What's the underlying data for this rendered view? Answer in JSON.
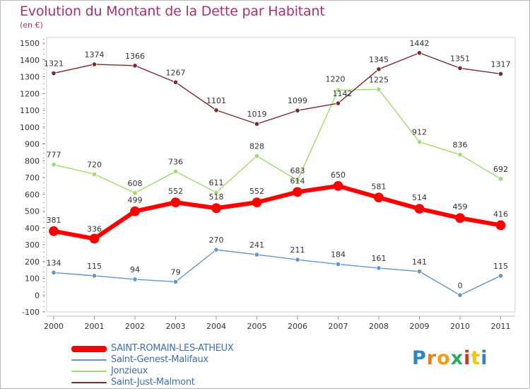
{
  "title": "Evolution du Montant de la Dette par Habitant",
  "subtitle": "(en €)",
  "logo": {
    "letters": [
      "P",
      "r",
      "o",
      "x",
      "i",
      "t",
      "i"
    ],
    "colors": [
      "#2e86c1",
      "#e67e22",
      "#f39c12",
      "#27ae60",
      "#c0392b",
      "#f1c40f",
      "#2e86c1"
    ]
  },
  "chart_data": {
    "type": "line",
    "title": "Evolution du Montant de la Dette par Habitant",
    "ylabel": "(en €)",
    "xlabel": "",
    "x": [
      "2000",
      "2001",
      "2002",
      "2003",
      "2004",
      "2005",
      "2006",
      "2007",
      "2008",
      "2009",
      "2010",
      "2011"
    ],
    "ylim": [
      -100,
      1500
    ],
    "yticks": [
      -100,
      0,
      100,
      200,
      300,
      400,
      500,
      600,
      700,
      800,
      900,
      1000,
      1100,
      1200,
      1300,
      1400,
      1500
    ],
    "grid": false,
    "legend": "bottom-left",
    "series": [
      {
        "name": "SAINT-ROMAIN-LES-ATHEUX",
        "color": "#ff0000",
        "values": [
          381,
          336,
          499,
          552,
          518,
          552,
          614,
          650,
          581,
          514,
          459,
          416
        ]
      },
      {
        "name": "Saint-Genest-Malifaux",
        "color": "#6495c8",
        "values": [
          134,
          115,
          94,
          79,
          270,
          241,
          211,
          184,
          161,
          141,
          0,
          115
        ]
      },
      {
        "name": "Jonzieux",
        "color": "#9fdb6c",
        "values": [
          777,
          720,
          608,
          736,
          611,
          828,
          683,
          1220,
          1225,
          912,
          836,
          692
        ]
      },
      {
        "name": "Saint-Just-Malmont",
        "color": "#7a2c2c",
        "values": [
          1321,
          1374,
          1366,
          1267,
          1101,
          1019,
          1099,
          1142,
          1345,
          1442,
          1351,
          1317
        ]
      }
    ]
  }
}
